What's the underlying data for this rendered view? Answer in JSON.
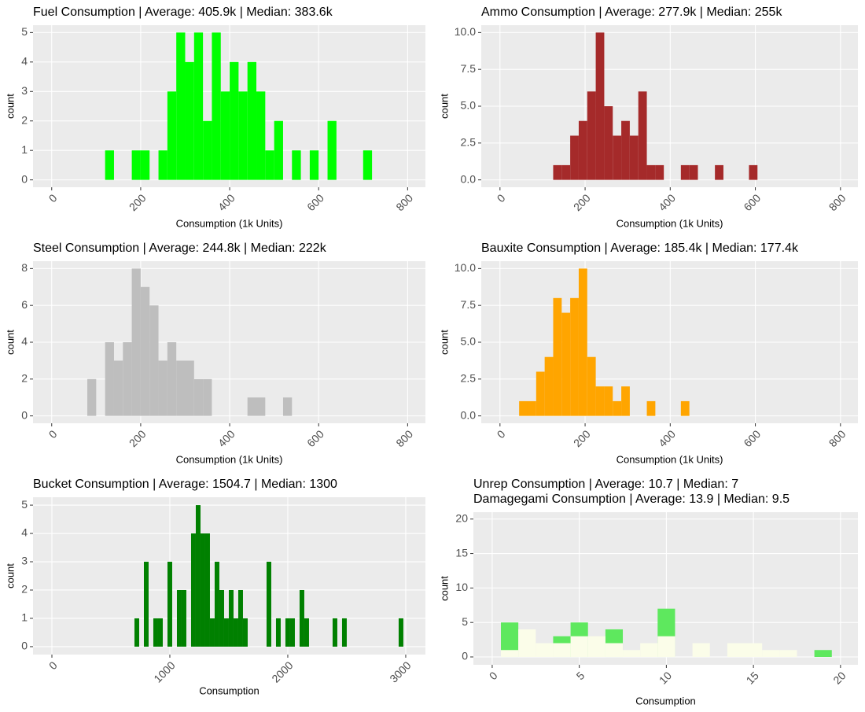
{
  "chart_data": [
    {
      "type": "histogram",
      "title": "Fuel Consumption | Average: 405.9k | Median: 383.6k",
      "xlabel": "Consumption (1k Units)",
      "ylabel": "count",
      "color": "#00ff00",
      "bins": [
        120,
        140,
        160,
        180,
        200,
        220,
        240,
        260,
        280,
        300,
        320,
        340,
        360,
        380,
        400,
        420,
        440,
        460,
        480,
        500,
        520,
        540,
        560,
        580,
        600,
        620,
        640,
        660,
        680,
        700,
        720
      ],
      "values": [
        1,
        0,
        0,
        1,
        1,
        0,
        1,
        3,
        5,
        4,
        5,
        2,
        5,
        3,
        4,
        3,
        4,
        3,
        1,
        2,
        0,
        1,
        0,
        1,
        0,
        2,
        0,
        0,
        0,
        1
      ],
      "xlim": [
        -42,
        840
      ],
      "ylim": [
        -0.25,
        5.25
      ],
      "xticks": [
        0,
        200,
        400,
        600,
        800
      ],
      "yticks": [
        0,
        1,
        2,
        3,
        4,
        5
      ],
      "grid": true
    },
    {
      "type": "histogram",
      "title": "Ammo Consumption | Average: 277.9k | Median: 255k",
      "xlabel": "Consumption (1k Units)",
      "ylabel": "count",
      "color": "#a52a2a",
      "bins": [
        125,
        145,
        165,
        185,
        205,
        225,
        245,
        265,
        285,
        305,
        325,
        345,
        365,
        385,
        405,
        425,
        445,
        465,
        485,
        505,
        525,
        545,
        565,
        585,
        605
      ],
      "values": [
        1,
        1,
        3,
        4,
        6,
        10,
        5,
        3,
        4,
        3,
        6,
        1,
        1,
        0,
        0,
        1,
        1,
        0,
        0,
        1,
        0,
        0,
        0,
        1
      ],
      "xlim": [
        -44,
        841
      ],
      "ylim": [
        -0.5,
        10.5
      ],
      "xticks": [
        0,
        200,
        400,
        600,
        800
      ],
      "yticks": [
        {
          "value": 0,
          "label": "0.0"
        },
        {
          "value": 2.5,
          "label": "2.5"
        },
        {
          "value": 5,
          "label": "5.0"
        },
        {
          "value": 7.5,
          "label": "7.5"
        },
        {
          "value": 10,
          "label": "10.0"
        }
      ],
      "grid": true
    },
    {
      "type": "histogram",
      "title": "Steel Consumption | Average: 244.8k | Median: 222k",
      "xlabel": "Consumption (1k Units)",
      "ylabel": "count",
      "color": "#bebebe",
      "bins": [
        80,
        100,
        120,
        140,
        160,
        180,
        200,
        220,
        240,
        260,
        280,
        300,
        320,
        340,
        360,
        380,
        400,
        420,
        440,
        460,
        480,
        500,
        520,
        540
      ],
      "values": [
        2,
        0,
        4,
        3,
        4,
        8,
        7,
        6,
        3,
        4,
        3,
        3,
        2,
        2,
        0,
        0,
        0,
        0,
        1,
        1,
        0,
        0,
        1
      ],
      "xlim": [
        -42,
        840
      ],
      "ylim": [
        -0.4,
        8.4
      ],
      "xticks": [
        0,
        200,
        400,
        600,
        800
      ],
      "yticks": [
        0,
        2,
        4,
        6,
        8
      ],
      "grid": true
    },
    {
      "type": "histogram",
      "title": "Bauxite Consumption | Average: 185.4k | Median: 177.4k",
      "xlabel": "Consumption (1k Units)",
      "ylabel": "count",
      "color": "#ffa500",
      "bins": [
        45,
        65,
        85,
        105,
        125,
        145,
        165,
        185,
        205,
        225,
        245,
        265,
        285,
        305,
        325,
        345,
        365,
        385,
        405,
        425,
        445
      ],
      "values": [
        1,
        1,
        3,
        4,
        8,
        7,
        8,
        10,
        4,
        2,
        2,
        1,
        2,
        0,
        0,
        1,
        0,
        0,
        0,
        1
      ],
      "xlim": [
        -44,
        841
      ],
      "ylim": [
        -0.5,
        10.5
      ],
      "xticks": [
        0,
        200,
        400,
        600,
        800
      ],
      "yticks": [
        {
          "value": 0,
          "label": "0.0"
        },
        {
          "value": 2.5,
          "label": "2.5"
        },
        {
          "value": 5,
          "label": "5.0"
        },
        {
          "value": 7.5,
          "label": "7.5"
        },
        {
          "value": 10,
          "label": "10.0"
        }
      ],
      "grid": true
    },
    {
      "type": "histogram",
      "title": "Bucket Consumption | Average: 1504.7 | Median: 1300",
      "xlabel": "Consumption",
      "ylabel": "count",
      "color": "#008000",
      "bins": [
        700,
        740,
        780,
        820,
        860,
        900,
        940,
        980,
        1020,
        1060,
        1100,
        1140,
        1180,
        1220,
        1260,
        1300,
        1340,
        1380,
        1420,
        1460,
        1500,
        1540,
        1580,
        1620,
        1660,
        1700,
        1740,
        1780,
        1820,
        1860,
        1900,
        1940,
        1980,
        2020,
        2060,
        2100,
        2140,
        2180,
        2220,
        2260,
        2300,
        2340,
        2380,
        2420,
        2460,
        2500,
        2540,
        2580,
        2620,
        2660,
        2700,
        2740,
        2780,
        2820,
        2860,
        2900,
        2940,
        2980
      ],
      "values": [
        1,
        0,
        3,
        0,
        1,
        1,
        0,
        3,
        0,
        2,
        2,
        0,
        4,
        5,
        4,
        4,
        1,
        3,
        2,
        1,
        2,
        1,
        2,
        1,
        0,
        0,
        0,
        0,
        3,
        0,
        1,
        0,
        1,
        1,
        0,
        2,
        1,
        0,
        0,
        0,
        0,
        0,
        1,
        0,
        1,
        0,
        0,
        0,
        0,
        0,
        0,
        0,
        0,
        0,
        0,
        0,
        1
      ],
      "xlim": [
        -160,
        3167
      ],
      "ylim": [
        -0.28,
        5.28
      ],
      "xticks": [
        0,
        1000,
        2000,
        3000
      ],
      "yticks": [
        0,
        1,
        2,
        3,
        4,
        5
      ],
      "grid": true
    },
    {
      "type": "histogram",
      "title": [
        "Unrep Consumption | Average: 10.7 | Median: 7",
        "Damagegami Consumption | Average: 13.9 | Median: 9.5"
      ],
      "xlabel": "Consumption",
      "ylabel": "count",
      "bins": [
        0.5,
        1.5,
        2.5,
        3.5,
        4.5,
        5.5,
        6.5,
        7.5,
        8.5,
        9.5,
        10.5,
        11.5,
        12.5,
        13.5,
        14.5,
        15.5,
        16.5,
        17.5,
        18.5,
        19.5
      ],
      "series": [
        {
          "color": "#5ee85e",
          "values": [
            5,
            0,
            0,
            3,
            5,
            0,
            4,
            0,
            0,
            7,
            0,
            0,
            0,
            0,
            0,
            0,
            0,
            0,
            1
          ]
        },
        {
          "color": "#fbfde9",
          "values": [
            1,
            4,
            2,
            2,
            3,
            3,
            2,
            1,
            2,
            3,
            0,
            2,
            0,
            2,
            2,
            1,
            1,
            0,
            0
          ]
        }
      ],
      "xlim": [
        -1.08,
        21
      ],
      "ylim": [
        -1.14,
        21
      ],
      "xticks": [
        0,
        5,
        10,
        15,
        20
      ],
      "yticks": [
        0,
        5,
        10,
        15,
        20
      ],
      "grid": true
    }
  ]
}
